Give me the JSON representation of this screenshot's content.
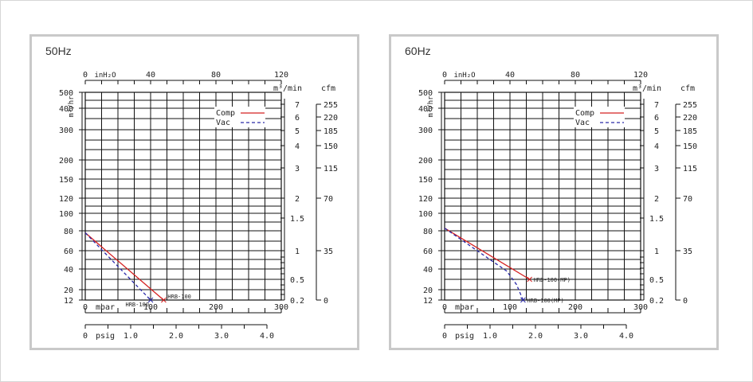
{
  "chart_data": [
    {
      "type": "line",
      "title": "50Hz",
      "top_axis": {
        "label": "inH₂O",
        "ticks": [
          "0",
          "40",
          "80",
          "120"
        ],
        "range": [
          0,
          120
        ]
      },
      "bottom_axis_1": {
        "label": "mbar",
        "ticks": [
          "0",
          "100",
          "200",
          "300"
        ],
        "range": [
          0,
          300
        ]
      },
      "bottom_axis_2": {
        "label": "psig",
        "ticks": [
          "0",
          "1.0",
          "2.0",
          "3.0",
          "4.0"
        ],
        "range": [
          0,
          4.35
        ]
      },
      "left_axis": {
        "label": "m³/hr",
        "ticks": [
          "500",
          "400",
          "300",
          "200",
          "150",
          "120",
          "100",
          "80",
          "60",
          "40",
          "20",
          "12"
        ],
        "scale": "nonlinear"
      },
      "right_axis_1": {
        "label": "m³/min",
        "ticks": [
          "7",
          "6",
          "5",
          "4",
          "3",
          "2",
          "1.5",
          "1",
          "0.5",
          "0.2"
        ]
      },
      "right_axis_2": {
        "label": "cfm",
        "ticks": [
          "255",
          "220",
          "185",
          "150",
          "115",
          "70",
          "35",
          "0"
        ]
      },
      "legend": {
        "placement": "top-right",
        "entries": [
          "Comp",
          "Vac"
        ]
      },
      "series": [
        {
          "name": "Comp",
          "style": "solid",
          "color": "#d42020",
          "points": [
            [
              0,
              78
            ],
            [
              120,
              12
            ]
          ],
          "end_label": "HRB-100"
        },
        {
          "name": "Vac",
          "style": "dashed",
          "color": "#2a2aa8",
          "points": [
            [
              0,
              78
            ],
            [
              100,
              12
            ]
          ],
          "end_label": "HRB-100"
        }
      ]
    },
    {
      "type": "line",
      "title": "60Hz",
      "top_axis": {
        "label": "inH₂O",
        "ticks": [
          "0",
          "40",
          "80",
          "120"
        ],
        "range": [
          0,
          120
        ]
      },
      "bottom_axis_1": {
        "label": "mbar",
        "ticks": [
          "0",
          "100",
          "200",
          "300"
        ],
        "range": [
          0,
          300
        ]
      },
      "bottom_axis_2": {
        "label": "psig",
        "ticks": [
          "0",
          "1.0",
          "2.0",
          "3.0",
          "4.0"
        ],
        "range": [
          0,
          4.35
        ]
      },
      "left_axis": {
        "label": "m³/hr",
        "ticks": [
          "500",
          "400",
          "300",
          "200",
          "150",
          "120",
          "100",
          "80",
          "60",
          "40",
          "20",
          "12"
        ],
        "scale": "nonlinear"
      },
      "right_axis_1": {
        "label": "m³/min",
        "ticks": [
          "7",
          "6",
          "5",
          "4",
          "3",
          "2",
          "1.5",
          "1",
          "0.5",
          "0.2"
        ]
      },
      "right_axis_2": {
        "label": "cfm",
        "ticks": [
          "255",
          "220",
          "185",
          "150",
          "115",
          "70",
          "35",
          "0"
        ]
      },
      "legend": {
        "placement": "top-right",
        "entries": [
          "Comp",
          "Vac"
        ]
      },
      "series": [
        {
          "name": "Comp",
          "style": "solid",
          "color": "#d42020",
          "points": [
            [
              0,
              83
            ],
            [
              130,
              30
            ]
          ],
          "end_label": "HRB-100(MP)"
        },
        {
          "name": "Vac",
          "style": "dashed",
          "color": "#2a2aa8",
          "points": [
            [
              0,
              83
            ],
            [
              60,
              55
            ],
            [
              95,
              38
            ],
            [
              110,
              25
            ],
            [
              120,
              12
            ]
          ],
          "end_label": "HRB-100(MP)"
        }
      ]
    }
  ]
}
